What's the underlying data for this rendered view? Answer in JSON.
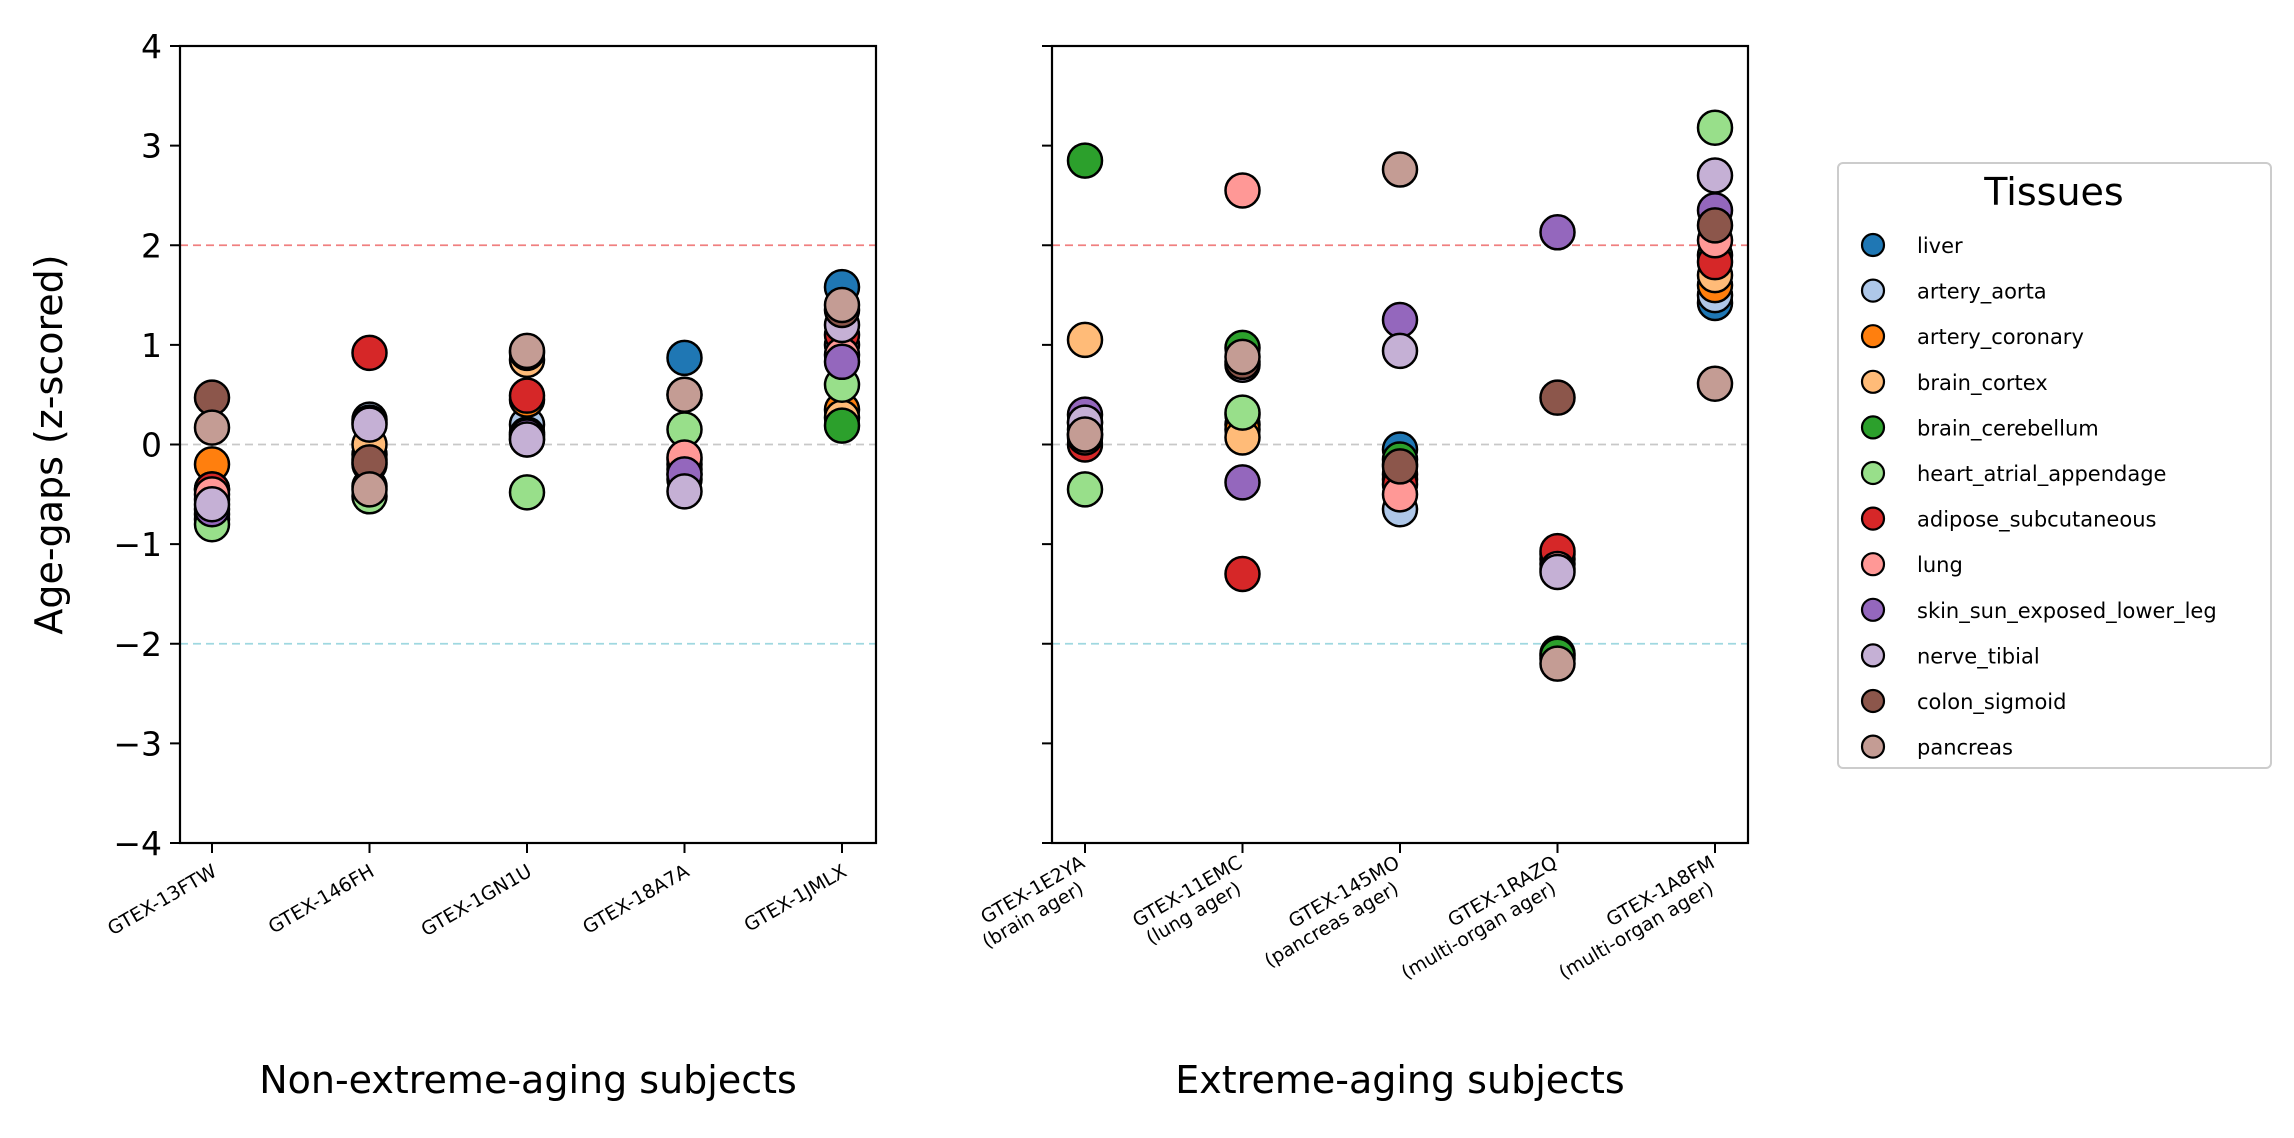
{
  "chart_data": {
    "type": "scatter",
    "ylabel": "Age-gaps (z-scored)",
    "ylim": [
      -4,
      4
    ],
    "yticks": [
      -4,
      -3,
      -2,
      -1,
      0,
      1,
      2,
      3,
      4
    ],
    "reference_lines": [
      {
        "y": 2,
        "color": "#f08080",
        "style": "dashed"
      },
      {
        "y": 0,
        "color": "#c8c8c8",
        "style": "dashed"
      },
      {
        "y": -2,
        "color": "#9fd8e0",
        "style": "dashed"
      }
    ],
    "grid": false,
    "legend": {
      "title": "Tissues",
      "placement": "right",
      "entries": [
        {
          "name": "liver",
          "color": "#1f77b4"
        },
        {
          "name": "artery_aorta",
          "color": "#aec7e8"
        },
        {
          "name": "artery_coronary",
          "color": "#ff7f0e"
        },
        {
          "name": "brain_cortex",
          "color": "#ffbb78"
        },
        {
          "name": "brain_cerebellum",
          "color": "#2ca02c"
        },
        {
          "name": "heart_atrial_appendage",
          "color": "#98df8a"
        },
        {
          "name": "adipose_subcutaneous",
          "color": "#d62728"
        },
        {
          "name": "lung",
          "color": "#ff9896"
        },
        {
          "name": "skin_sun_exposed_lower_leg",
          "color": "#9467bd"
        },
        {
          "name": "nerve_tibial",
          "color": "#c5b0d5"
        },
        {
          "name": "colon_sigmoid",
          "color": "#8c564b"
        },
        {
          "name": "pancreas",
          "color": "#c49c94"
        }
      ]
    },
    "panels": [
      {
        "xlabel": "Non-extreme-aging subjects",
        "subjects": [
          {
            "label": [
              "GTEX-13FTW"
            ],
            "points": {
              "liver": -0.55,
              "artery_aorta": -0.7,
              "artery_coronary": -0.2,
              "brain_cortex": -0.45,
              "brain_cerebellum": -0.75,
              "heart_atrial_appendage": -0.8,
              "adipose_subcutaneous": -0.45,
              "lung": -0.5,
              "skin_sun_exposed_lower_leg": -0.65,
              "nerve_tibial": -0.6,
              "colon_sigmoid": 0.47,
              "pancreas": 0.17
            }
          },
          {
            "label": [
              "GTEX-146FH"
            ],
            "points": {
              "liver": -0.1,
              "artery_aorta": 0.25,
              "artery_coronary": -0.15,
              "brain_cortex": 0.0,
              "brain_cerebellum": 0.22,
              "heart_atrial_appendage": -0.52,
              "adipose_subcutaneous": 0.92,
              "lung": -0.42,
              "skin_sun_exposed_lower_leg": -0.2,
              "nerve_tibial": 0.2,
              "colon_sigmoid": -0.18,
              "pancreas": -0.45
            }
          },
          {
            "label": [
              "GTEX-1GN1U"
            ],
            "points": {
              "liver": 0.12,
              "artery_aorta": 0.2,
              "artery_coronary": 0.45,
              "brain_cortex": 0.85,
              "brain_cerebellum": 0.05,
              "heart_atrial_appendage": -0.48,
              "adipose_subcutaneous": 0.49,
              "lung": 0.1,
              "skin_sun_exposed_lower_leg": 0.08,
              "nerve_tibial": 0.05,
              "colon_sigmoid": 0.92,
              "pancreas": 0.94
            }
          },
          {
            "label": [
              "GTEX-18A7A"
            ],
            "points": {
              "liver": 0.87,
              "artery_aorta": -0.3,
              "artery_coronary": -0.2,
              "brain_cortex": -0.25,
              "brain_cerebellum": -0.35,
              "heart_atrial_appendage": 0.15,
              "adipose_subcutaneous": -0.15,
              "lung": -0.13,
              "skin_sun_exposed_lower_leg": -0.3,
              "nerve_tibial": -0.47,
              "colon_sigmoid": 0.5,
              "pancreas": 0.5
            }
          },
          {
            "label": [
              "GTEX-1JMLX"
            ],
            "points": {
              "liver": 1.58,
              "artery_aorta": 1.0,
              "artery_coronary": 0.35,
              "brain_cortex": 0.27,
              "brain_cerebellum": 0.19,
              "heart_atrial_appendage": 0.6,
              "adipose_subcutaneous": 1.1,
              "lung": 0.9,
              "skin_sun_exposed_lower_leg": 0.83,
              "nerve_tibial": 1.2,
              "colon_sigmoid": 1.35,
              "pancreas": 1.4
            }
          }
        ]
      },
      {
        "xlabel": "Extreme-aging subjects",
        "subjects": [
          {
            "label": [
              "GTEX-1E2YA",
              "(brain ager)"
            ],
            "points": {
              "liver": 0.1,
              "artery_aorta": 0.22,
              "artery_coronary": 0.15,
              "brain_cortex": 1.05,
              "brain_cerebellum": 2.85,
              "heart_atrial_appendage": -0.45,
              "adipose_subcutaneous": 0.0,
              "lung": 0.1,
              "skin_sun_exposed_lower_leg": 0.3,
              "nerve_tibial": 0.22,
              "colon_sigmoid": 0.07,
              "pancreas": 0.1
            }
          },
          {
            "label": [
              "GTEX-11EMC",
              "(lung ager)"
            ],
            "points": {
              "liver": 0.3,
              "artery_aorta": 0.2,
              "artery_coronary": 0.15,
              "brain_cortex": 0.07,
              "brain_cerebellum": 0.97,
              "heart_atrial_appendage": 0.32,
              "adipose_subcutaneous": -1.3,
              "lung": 2.55,
              "skin_sun_exposed_lower_leg": -0.38,
              "nerve_tibial": 0.8,
              "colon_sigmoid": 0.83,
              "pancreas": 0.88
            }
          },
          {
            "label": [
              "GTEX-145MO",
              "(pancreas ager)"
            ],
            "points": {
              "liver": -0.05,
              "artery_aorta": -0.65,
              "artery_coronary": -0.3,
              "brain_cortex": -0.2,
              "brain_cerebellum": -0.15,
              "heart_atrial_appendage": -0.35,
              "adipose_subcutaneous": -0.4,
              "lung": -0.5,
              "skin_sun_exposed_lower_leg": 1.25,
              "nerve_tibial": 0.94,
              "colon_sigmoid": -0.22,
              "pancreas": 2.76
            }
          },
          {
            "label": [
              "GTEX-1RAZQ",
              "(multi-organ ager)"
            ],
            "points": {
              "liver": -2.1,
              "artery_aorta": -2.15,
              "artery_coronary": -1.1,
              "brain_cortex": -1.15,
              "brain_cerebellum": -2.12,
              "heart_atrial_appendage": -1.2,
              "adipose_subcutaneous": -1.07,
              "lung": -1.25,
              "skin_sun_exposed_lower_leg": 2.13,
              "nerve_tibial": -1.28,
              "colon_sigmoid": 0.47,
              "pancreas": -2.2
            }
          },
          {
            "label": [
              "GTEX-1A8FM",
              "(multi-organ ager)"
            ],
            "points": {
              "liver": 1.42,
              "artery_aorta": 1.5,
              "artery_coronary": 1.6,
              "brain_cortex": 1.7,
              "brain_cerebellum": 1.9,
              "heart_atrial_appendage": 3.18,
              "adipose_subcutaneous": 1.83,
              "lung": 2.05,
              "skin_sun_exposed_lower_leg": 2.35,
              "nerve_tibial": 2.7,
              "colon_sigmoid": 2.2,
              "pancreas": 0.61
            }
          }
        ]
      }
    ]
  }
}
